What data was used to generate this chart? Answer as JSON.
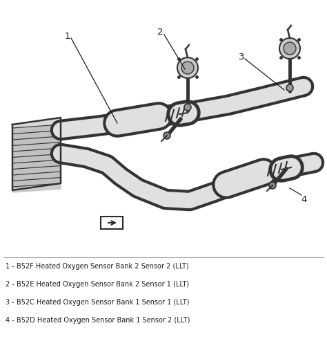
{
  "bg_color": "#ffffff",
  "line_color": "#2a2a2a",
  "label_color": "#1a1a1a",
  "separator_color": "#999999",
  "legend": [
    "1 - B52F Heated Oxygen Sensor Bank 2 Sensor 2 (LLT)",
    "2 - B52E Heated Oxygen Sensor Bank 2 Sensor 1 (LLT)",
    "3 - B52C Heated Oxygen Sensor Bank 1 Sensor 1 (LLT)",
    "4 - B52D Heated Oxygen Sensor Bank 1 Sensor 2 (LLT)"
  ],
  "fig_width": 4.74,
  "fig_height": 4.9,
  "dpi": 100,
  "legend_fontsize": 7.0,
  "label_fontsize": 9.5,
  "pipe_fill": "#e0e0e0",
  "pipe_edge": "#333333",
  "pipe_lw_outer": 20,
  "pipe_lw_inner": 14,
  "manifold_fill": "#cccccc"
}
